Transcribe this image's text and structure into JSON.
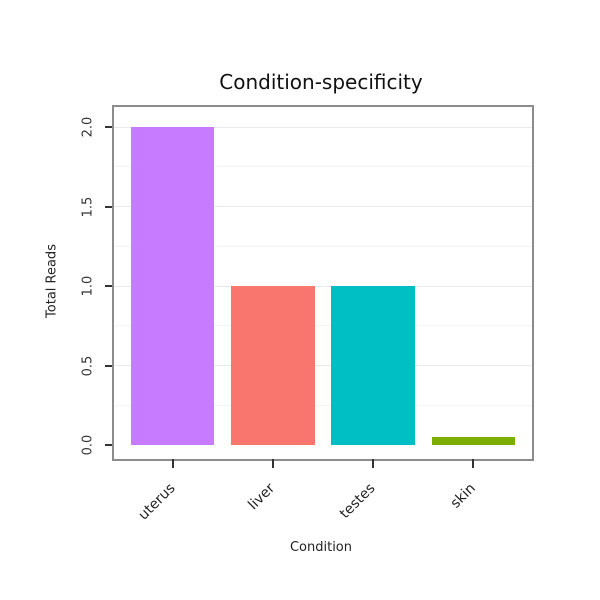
{
  "chart_data": {
    "type": "bar",
    "title": "Condition-specificity",
    "xlabel": "Condition",
    "ylabel": "Total Reads",
    "categories": [
      "uterus",
      "liver",
      "testes",
      "skin"
    ],
    "values": [
      2.0,
      1.0,
      1.0,
      0.05
    ],
    "bar_colors": [
      "#c77cff",
      "#f8766d",
      "#00bfc4",
      "#7cae00"
    ],
    "ylim": [
      0,
      2.1
    ],
    "yticks": [
      0.0,
      0.5,
      1.0,
      1.5,
      2.0
    ],
    "ytick_labels": [
      "0.0",
      "0.5",
      "1.0",
      "1.5",
      "2.0"
    ],
    "grid": true,
    "border_color": "#8c8c8c",
    "legend": "none"
  }
}
